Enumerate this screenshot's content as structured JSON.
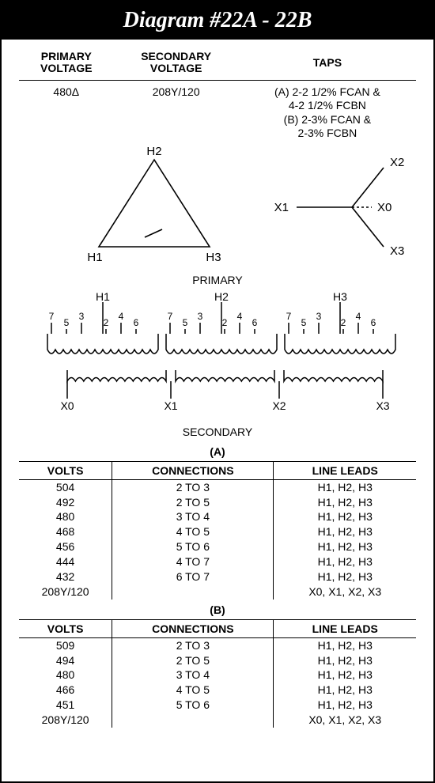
{
  "title": "Diagram #22A - 22B",
  "header": {
    "col1": "PRIMARY\nVOLTAGE",
    "col2": "SECONDARY\nVOLTAGE",
    "col3": "TAPS",
    "primary": "480Δ",
    "secondary": "208Y/120",
    "tapsA": "(A) 2-2 1/2% FCAN &\n4-2 1/2% FCBN",
    "tapsB": "(B) 2-3% FCAN &\n2-3% FCBN"
  },
  "delta": {
    "top": "H2",
    "left": "H1",
    "right": "H3"
  },
  "wye": {
    "left": "X1",
    "top": "X2",
    "right": "X0",
    "bottom": "X3"
  },
  "primaryLabel": "PRIMARY",
  "secondaryLabel": "SECONDARY",
  "coils": {
    "leads": [
      "H1",
      "H2",
      "H3"
    ],
    "taps": [
      "7",
      "5",
      "3",
      "2",
      "4",
      "6"
    ],
    "secLeads": [
      "X0",
      "X1",
      "X2",
      "X3"
    ]
  },
  "tableA": {
    "group": "(A)",
    "cols": [
      "VOLTS",
      "CONNECTIONS",
      "LINE LEADS"
    ],
    "rows": [
      [
        "504",
        "2 TO 3",
        "H1, H2, H3"
      ],
      [
        "492",
        "2 TO 5",
        "H1, H2, H3"
      ],
      [
        "480",
        "3 TO 4",
        "H1, H2, H3"
      ],
      [
        "468",
        "4 TO 5",
        "H1, H2, H3"
      ],
      [
        "456",
        "5 TO 6",
        "H1, H2, H3"
      ],
      [
        "444",
        "4 TO 7",
        "H1, H2, H3"
      ],
      [
        "432",
        "6 TO 7",
        "H1, H2, H3"
      ],
      [
        "208Y/120",
        "",
        "X0, X1, X2, X3"
      ]
    ]
  },
  "tableB": {
    "group": "(B)",
    "cols": [
      "VOLTS",
      "CONNECTIONS",
      "LINE LEADS"
    ],
    "rows": [
      [
        "509",
        "2 TO 3",
        "H1, H2, H3"
      ],
      [
        "494",
        "2 TO 5",
        "H1, H2, H3"
      ],
      [
        "480",
        "3 TO 4",
        "H1, H2, H3"
      ],
      [
        "466",
        "4 TO 5",
        "H1, H2, H3"
      ],
      [
        "451",
        "5 TO 6",
        "H1, H2, H3"
      ],
      [
        "208Y/120",
        "",
        "X0, X1, X2, X3"
      ]
    ]
  },
  "style": {
    "stroke": "#000000",
    "strokeWidth": 1.6,
    "background": "#ffffff",
    "font": "Arial",
    "fontSize": 14
  }
}
